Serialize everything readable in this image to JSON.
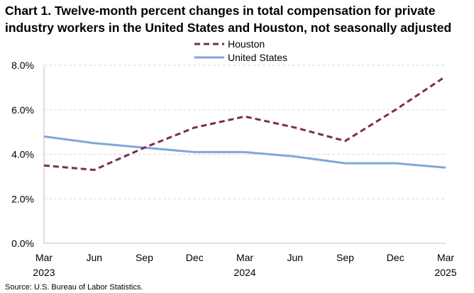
{
  "chart_data": {
    "type": "line",
    "title": "Chart 1. Twelve-month percent changes in total compensation for private industry workers in the United States and Houston, not seasonally adjusted",
    "xlabel": "",
    "ylabel": "",
    "categories": [
      {
        "month": "Mar",
        "year": "2023"
      },
      {
        "month": "Jun",
        "year": ""
      },
      {
        "month": "Sep",
        "year": ""
      },
      {
        "month": "Dec",
        "year": ""
      },
      {
        "month": "Mar",
        "year": "2024"
      },
      {
        "month": "Jun",
        "year": ""
      },
      {
        "month": "Sep",
        "year": ""
      },
      {
        "month": "Dec",
        "year": ""
      },
      {
        "month": "Mar",
        "year": "2025"
      }
    ],
    "ylim": [
      0,
      8
    ],
    "yticks": [
      0,
      2,
      4,
      6,
      8
    ],
    "ytick_labels": [
      "0.0%",
      "2.0%",
      "4.0%",
      "6.0%",
      "8.0%"
    ],
    "grid": "horizontal dashed",
    "legend_position": "top-center",
    "series": [
      {
        "name": "Houston",
        "color": "#7B2D4E",
        "style": "dashed",
        "values": [
          3.5,
          3.3,
          4.3,
          5.2,
          5.7,
          5.2,
          4.6,
          6.0,
          7.5
        ]
      },
      {
        "name": "United States",
        "color": "#7FA7DA",
        "style": "solid",
        "values": [
          4.8,
          4.5,
          4.3,
          4.1,
          4.1,
          3.9,
          3.6,
          3.6,
          3.4
        ]
      }
    ]
  },
  "source": "Source: U.S. Bureau of Labor Statistics."
}
